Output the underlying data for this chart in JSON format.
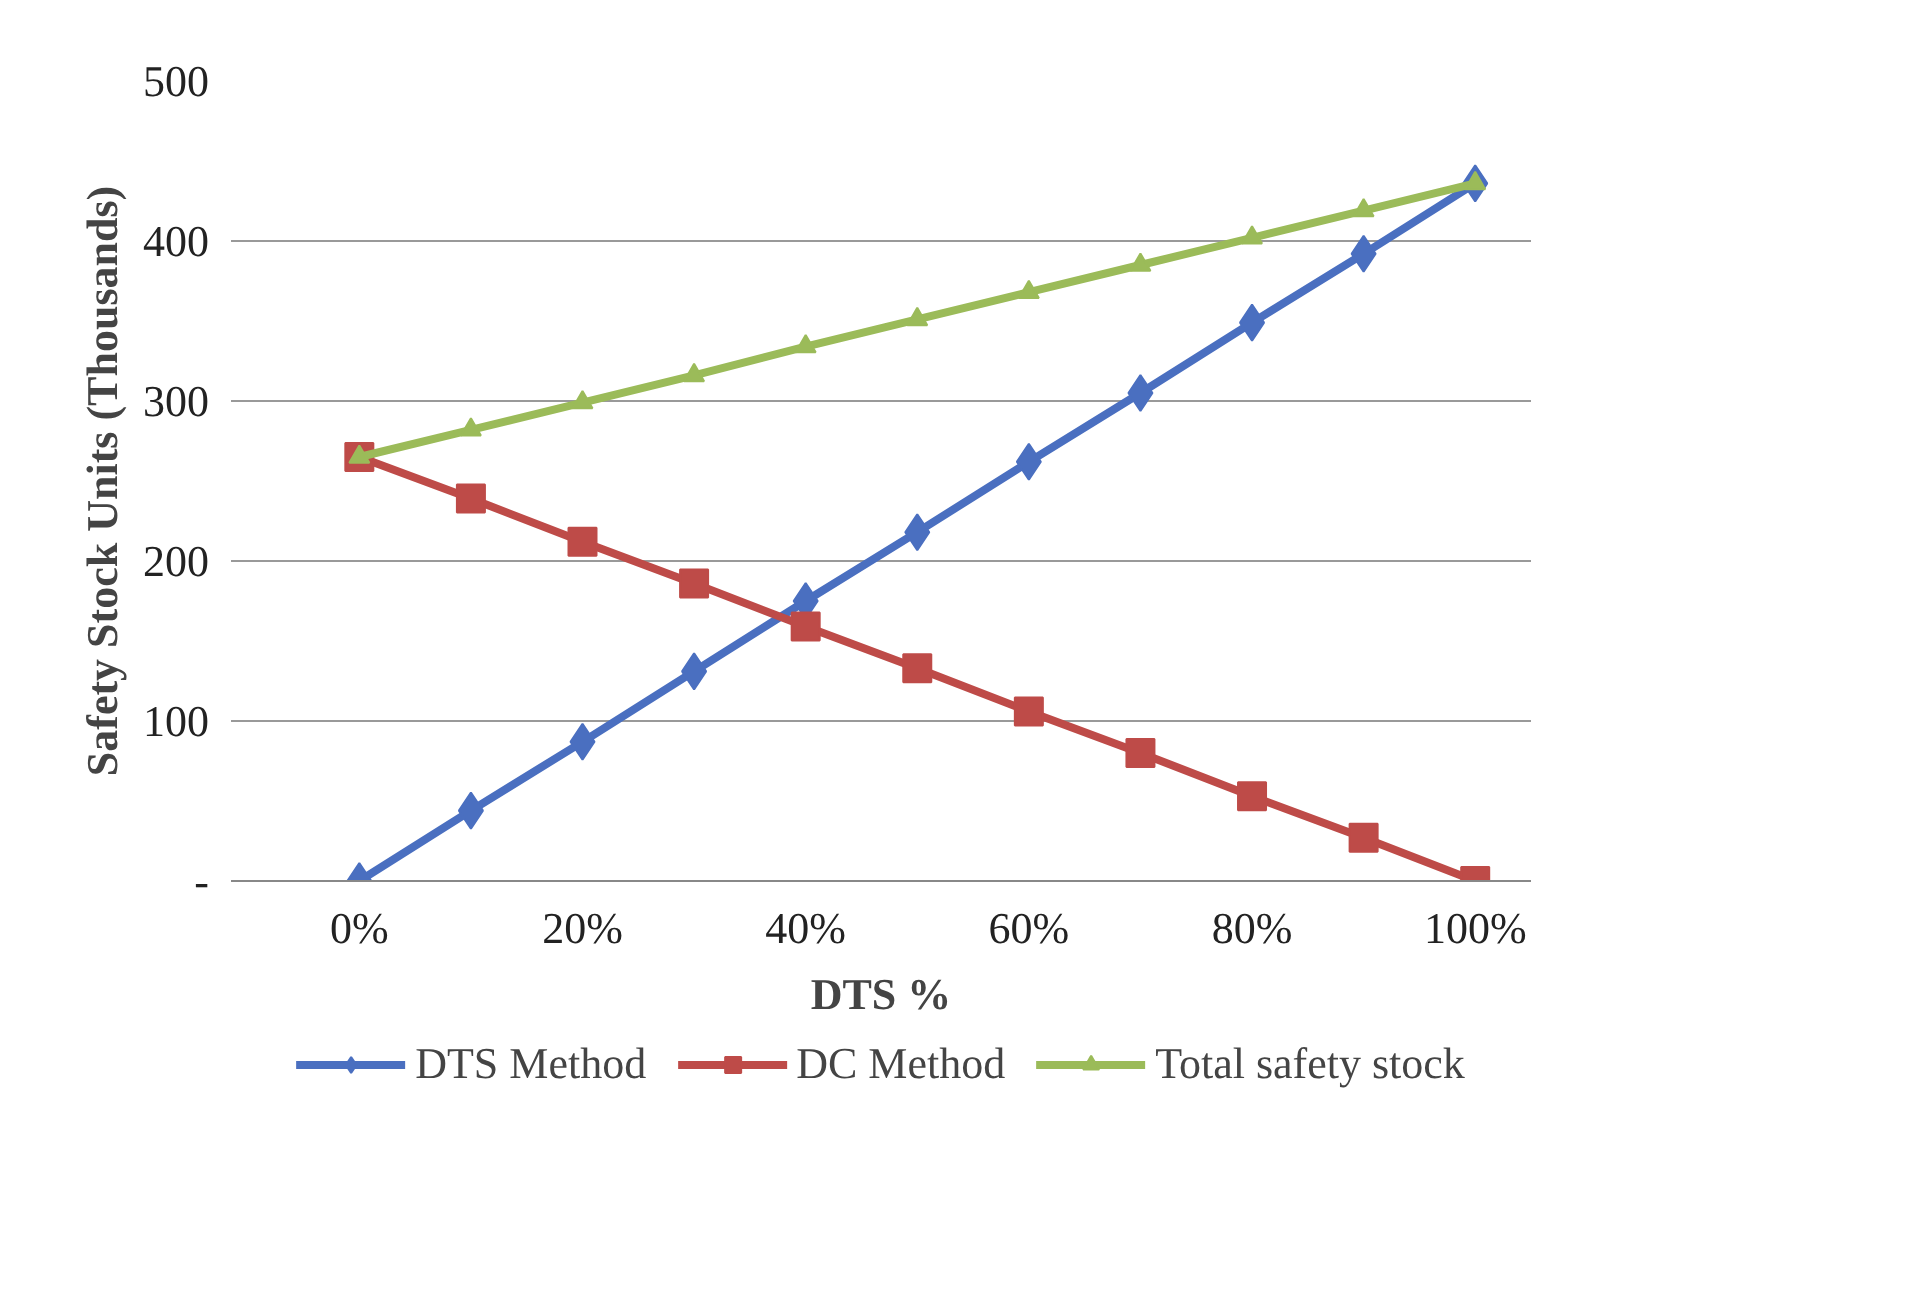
{
  "chart_data": {
    "type": "line",
    "xlabel": "DTS %",
    "ylabel": "Safety Stock Units (Thousands)",
    "x": [
      0,
      10,
      20,
      30,
      40,
      50,
      60,
      70,
      80,
      90,
      100
    ],
    "xlim": [
      -11.5,
      105
    ],
    "xticks": [
      {
        "value": 0,
        "label": "0%"
      },
      {
        "value": 20,
        "label": "20%"
      },
      {
        "value": 40,
        "label": "40%"
      },
      {
        "value": 60,
        "label": "60%"
      },
      {
        "value": 80,
        "label": "80%"
      },
      {
        "value": 100,
        "label": "100%"
      }
    ],
    "ylim": [
      0,
      500
    ],
    "yticks": [
      {
        "value": 0,
        "label": "-"
      },
      100,
      200,
      300,
      400,
      500
    ],
    "grid": "y",
    "legend": "bottom",
    "line_style": "solid",
    "series": [
      {
        "name": "DTS Method",
        "color": "#4a6fc0",
        "marker": "diamond",
        "values": [
          0,
          44,
          87,
          131,
          175,
          218,
          262,
          305,
          349,
          392,
          436
        ]
      },
      {
        "name": "DC Method",
        "color": "#be4b48",
        "marker": "square",
        "values": [
          265,
          239,
          212,
          186,
          159,
          133,
          106,
          80,
          53,
          27,
          0
        ]
      },
      {
        "name": "Total safety stock",
        "color": "#9bbb59",
        "marker": "triangle",
        "values": [
          265,
          282,
          299,
          316,
          334,
          351,
          368,
          385,
          402,
          419,
          436
        ]
      }
    ]
  }
}
